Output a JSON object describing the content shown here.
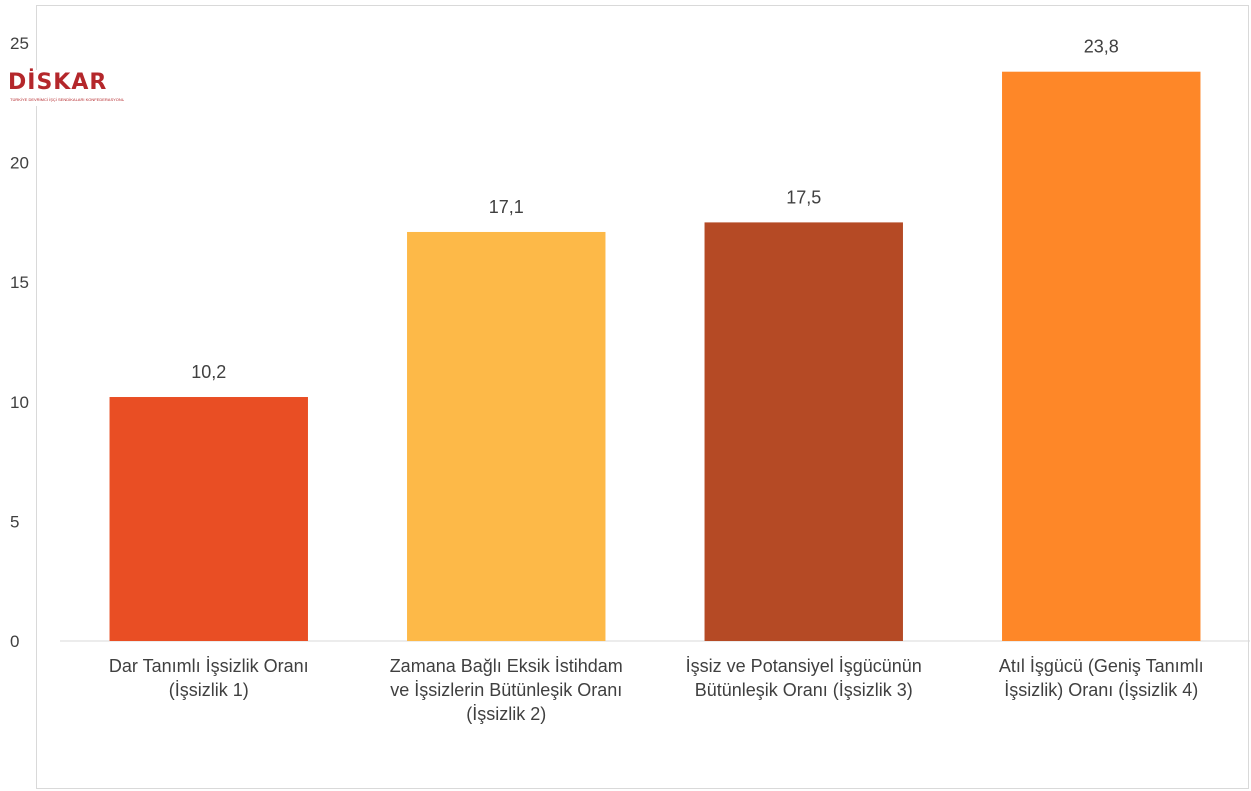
{
  "logo": {
    "wordmark": "DİSKAR",
    "subtitle": "TÜRKİYE DEVRİMCİ İŞÇİ SENDİKALARI KONFEDERASYONU ARAŞTIRMA MERKEZİ",
    "color": "#b4272b"
  },
  "chart_data": {
    "type": "bar",
    "title": "",
    "xlabel": "",
    "ylabel": "",
    "ylim": [
      0,
      25
    ],
    "yticks": [
      "0",
      "5",
      "10",
      "15",
      "20",
      "25"
    ],
    "grid": false,
    "legend": "none",
    "categories": [
      "Dar Tanımlı İşsizlik Oranı\n(İşsizlik 1)",
      "Zamana Bağlı Eksik İstihdam\nve İşsizlerin Bütünleşik Oranı\n(İşsizlik 2)",
      "İşsiz ve Potansiyel İşgücünün\nBütünleşik Oranı (İşsizlik 3)",
      "Atıl İşgücü (Geniş Tanımlı\nİşsizlik) Oranı (İşsizlik 4)"
    ],
    "values": [
      10.2,
      17.1,
      17.5,
      23.8
    ],
    "data_labels": [
      "10,2",
      "17,1",
      "17,5",
      "23,8"
    ],
    "colors": [
      "#e94e24",
      "#fdb948",
      "#b54a25",
      "#fe8728"
    ]
  }
}
